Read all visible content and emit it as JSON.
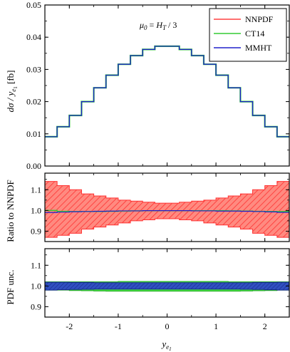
{
  "chart_data": {
    "type": "line",
    "x_bins": [
      -2.5,
      -2.25,
      -2.0,
      -1.75,
      -1.5,
      -1.25,
      -1.0,
      -0.75,
      -0.5,
      -0.25,
      0.0,
      0.25,
      0.5,
      0.75,
      1.0,
      1.25,
      1.5,
      1.75,
      2.0,
      2.25,
      2.5
    ],
    "xlim": [
      -2.5,
      2.5
    ],
    "x_ticks": [
      "-2",
      "-1",
      "0",
      "1",
      "2"
    ],
    "x_tick_values": [
      -2,
      -1,
      0,
      1,
      2
    ],
    "xlabel": "y_e1",
    "legend": {
      "position": "top-right",
      "entries": [
        {
          "name": "NNPDF",
          "color": "#ff4040"
        },
        {
          "name": "CT14",
          "color": "#33cc33"
        },
        {
          "name": "MMHT",
          "color": "#2020cc"
        }
      ]
    },
    "panels": [
      {
        "id": "main",
        "ylabel": "dσ / y_e1 [fb]",
        "ylim": [
          0.0,
          0.05
        ],
        "y_ticks": [
          "0.00",
          "0.01",
          "0.02",
          "0.03",
          "0.04",
          "0.05"
        ],
        "y_tick_values": [
          0.0,
          0.01,
          0.02,
          0.03,
          0.04,
          0.05
        ],
        "annotation": "μ0 = HT / 3",
        "series": [
          {
            "name": "MMHT",
            "values": [
              0.0091,
              0.0122,
              0.0157,
              0.02,
              0.0243,
              0.0282,
              0.0316,
              0.0343,
              0.0362,
              0.0372,
              0.0372,
              0.0362,
              0.0343,
              0.0316,
              0.0282,
              0.0243,
              0.02,
              0.0157,
              0.0122,
              0.0091
            ]
          }
        ]
      },
      {
        "id": "ratio",
        "ylabel": "Ratio to NNPDF",
        "ylim": [
          0.85,
          1.18
        ],
        "y_ticks": [
          "0.9",
          "1.0",
          "1.1"
        ],
        "y_tick_values": [
          0.9,
          1.0,
          1.1
        ],
        "band": {
          "name": "NNPDF",
          "upper": [
            1.14,
            1.12,
            1.1,
            1.08,
            1.07,
            1.06,
            1.05,
            1.045,
            1.04,
            1.035,
            1.035,
            1.04,
            1.045,
            1.05,
            1.06,
            1.07,
            1.08,
            1.1,
            1.12,
            1.14
          ],
          "lower": [
            0.87,
            0.88,
            0.89,
            0.91,
            0.92,
            0.93,
            0.94,
            0.95,
            0.955,
            0.96,
            0.96,
            0.955,
            0.95,
            0.94,
            0.93,
            0.92,
            0.91,
            0.89,
            0.88,
            0.87
          ]
        },
        "lines": [
          {
            "name": "CT14",
            "values": [
              1.0,
              0.996,
              0.995,
              0.995,
              0.995,
              0.996,
              0.997,
              0.998,
              0.999,
              0.999,
              0.999,
              0.999,
              0.999,
              0.999,
              0.999,
              0.998,
              0.997,
              0.996,
              0.995,
              0.995
            ]
          },
          {
            "name": "MMHT",
            "values": [
              0.99,
              0.992,
              0.994,
              0.995,
              0.996,
              0.997,
              0.998,
              0.998,
              0.999,
              0.999,
              0.999,
              0.999,
              0.998,
              0.998,
              0.997,
              0.997,
              0.996,
              0.995,
              0.993,
              0.991
            ]
          }
        ]
      },
      {
        "id": "unc",
        "ylabel": "PDF unc.",
        "ylim": [
          0.85,
          1.18
        ],
        "y_ticks": [
          "0.9",
          "1.0",
          "1.1"
        ],
        "y_tick_values": [
          0.9,
          1.0,
          1.1
        ],
        "bands": [
          {
            "name": "CT14",
            "upper": [
              1.02,
              1.02,
              1.02,
              1.02,
              1.02,
              1.02,
              1.022,
              1.022,
              1.022,
              1.022,
              1.022,
              1.022,
              1.022,
              1.022,
              1.022,
              1.02,
              1.02,
              1.02,
              1.02,
              1.02
            ],
            "lower": [
              0.98,
              0.98,
              0.978,
              0.977,
              0.976,
              0.975,
              0.975,
              0.975,
              0.975,
              0.975,
              0.975,
              0.975,
              0.975,
              0.975,
              0.975,
              0.975,
              0.976,
              0.977,
              0.978,
              0.98
            ]
          },
          {
            "name": "MMHT",
            "upper": [
              1.018,
              1.018,
              1.017,
              1.017,
              1.016,
              1.016,
              1.016,
              1.016,
              1.016,
              1.016,
              1.016,
              1.016,
              1.016,
              1.016,
              1.016,
              1.016,
              1.016,
              1.017,
              1.017,
              1.018
            ],
            "lower": [
              0.98,
              0.982,
              0.983,
              0.984,
              0.985,
              0.985,
              0.985,
              0.985,
              0.985,
              0.985,
              0.985,
              0.985,
              0.985,
              0.985,
              0.985,
              0.985,
              0.984,
              0.983,
              0.982,
              0.98
            ]
          }
        ]
      }
    ]
  }
}
